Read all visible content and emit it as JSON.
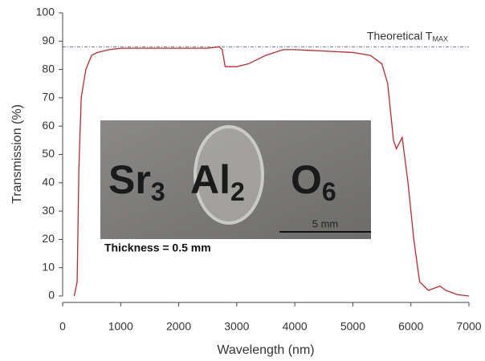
{
  "chart_data": {
    "type": "line",
    "x_label": "Wavelength (nm)",
    "y_label": "Transmission (%)",
    "xlim": [
      0,
      7000
    ],
    "ylim": [
      0,
      100
    ],
    "xticks": [
      0,
      1000,
      2000,
      3000,
      4000,
      5000,
      6000,
      7000
    ],
    "yticks": [
      0,
      10,
      20,
      30,
      40,
      50,
      60,
      70,
      80,
      90,
      100
    ],
    "color": "#c0282d",
    "x": [
      200,
      250,
      280,
      320,
      400,
      500,
      600,
      800,
      1000,
      1500,
      2000,
      2500,
      2700,
      2750,
      2800,
      3000,
      3200,
      3500,
      3800,
      4000,
      4500,
      5000,
      5300,
      5500,
      5600,
      5700,
      5750,
      5850,
      5950,
      6050,
      6150,
      6300,
      6500,
      6600,
      6800,
      7000
    ],
    "values": [
      0,
      5,
      45,
      70,
      80,
      85,
      86,
      87,
      87.5,
      87.5,
      87.5,
      87.5,
      88,
      87,
      81,
      81,
      82,
      85,
      87,
      87,
      86.5,
      86,
      85,
      82,
      75,
      55,
      52,
      56,
      40,
      20,
      5,
      2,
      3.5,
      2,
      0.5,
      0
    ],
    "reference_line": {
      "value": 88,
      "label": "Theoretical T",
      "label_subscript": "MAX",
      "color": "#6a7a90"
    },
    "inset": {
      "formula": [
        {
          "text": "Sr",
          "sub": "3"
        },
        {
          "text": "Al",
          "sub": "2"
        },
        {
          "text": "O",
          "sub": "6"
        }
      ],
      "scale_bar": "5 mm",
      "caption": "Thickness = 0.5 mm"
    }
  }
}
